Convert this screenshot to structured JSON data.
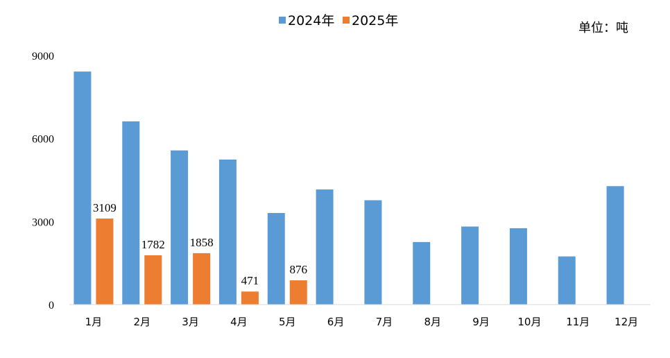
{
  "chart_data": {
    "type": "bar",
    "categories": [
      "1月",
      "2月",
      "3月",
      "4月",
      "5月",
      "6月",
      "7月",
      "8月",
      "9月",
      "10月",
      "11月",
      "12月"
    ],
    "series": [
      {
        "name": "2024年",
        "color": "#5B9BD5",
        "values": [
          8420,
          6620,
          5570,
          5240,
          3310,
          4160,
          3770,
          2260,
          2820,
          2760,
          1740,
          4280
        ]
      },
      {
        "name": "2025年",
        "color": "#ED7D31",
        "values": [
          3109,
          1782,
          1858,
          471,
          876,
          null,
          null,
          null,
          null,
          null,
          null,
          null
        ],
        "data_labels": [
          "3109",
          "1782",
          "1858",
          "471",
          "876"
        ]
      }
    ],
    "yticks": [
      "0",
      "3000",
      "6000",
      "9000"
    ],
    "ylim": [
      0,
      9000
    ],
    "unit_note": "单位：吨",
    "legend_position": "top-center",
    "grid": false
  }
}
